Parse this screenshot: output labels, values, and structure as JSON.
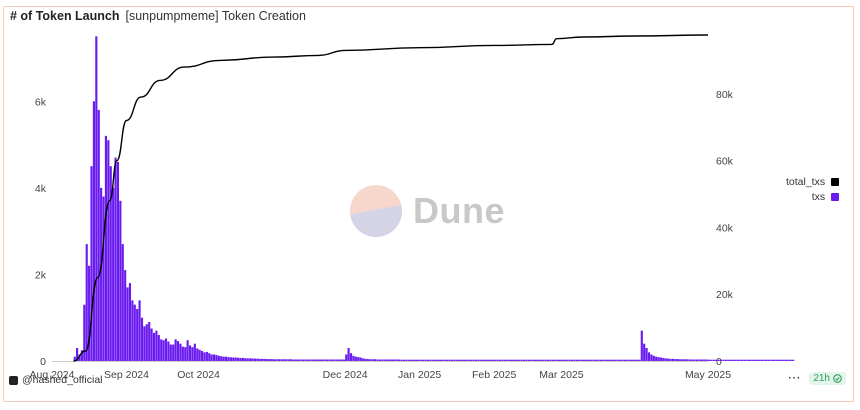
{
  "header": {
    "title": "# of Token Launch",
    "subtitle": "[sunpumpmeme] Token Creation"
  },
  "footer": {
    "author": "@hashed_official",
    "menu": "···",
    "freshness": "21h"
  },
  "watermark": "Dune",
  "colors": {
    "bar": "#6a1bf0",
    "line": "#000000",
    "grid": "#eeeeee",
    "card_border": "#f3c9b6"
  },
  "chart_data": {
    "type": "bar+line",
    "x_tick_labels": [
      "Aug 2024",
      "Sep 2024",
      "Oct 2024",
      "Dec 2024",
      "Jan 2025",
      "Feb 2025",
      "Mar 2025",
      "May 2025"
    ],
    "x_tick_dates": [
      "2024-08-01",
      "2024-09-01",
      "2024-10-01",
      "2024-12-01",
      "2025-01-01",
      "2025-02-01",
      "2025-03-01",
      "2025-05-01"
    ],
    "left_axis": {
      "ticks": [
        0,
        2000,
        4000,
        6000
      ],
      "tick_labels": [
        "0",
        "2k",
        "4k",
        "6k"
      ],
      "range": [
        0,
        7600
      ]
    },
    "right_axis": {
      "ticks": [
        0,
        20000,
        40000,
        60000,
        80000
      ],
      "tick_labels": [
        "0",
        "20k",
        "40k",
        "60k",
        "80k"
      ],
      "range": [
        0,
        98500
      ]
    },
    "series": [
      {
        "name": "txs",
        "kind": "bar",
        "axis": "left",
        "color": "#6a1bf0",
        "start_date": "2024-08-10",
        "values": [
          100,
          300,
          150,
          250,
          1300,
          2700,
          2200,
          4500,
          6000,
          7500,
          5800,
          4000,
          3800,
          5200,
          5100,
          4500,
          4000,
          4700,
          4600,
          3700,
          2700,
          2100,
          1700,
          1800,
          1400,
          1300,
          1200,
          1400,
          1000,
          800,
          850,
          900,
          750,
          650,
          700,
          600,
          500,
          480,
          520,
          450,
          380,
          380,
          500,
          460,
          400,
          330,
          320,
          480,
          360,
          320,
          400,
          290,
          260,
          230,
          200,
          210,
          180,
          150,
          150,
          140,
          120,
          110,
          100,
          100,
          90,
          85,
          80,
          80,
          75,
          70,
          70,
          65,
          60,
          60,
          60,
          55,
          55,
          50,
          50,
          50,
          45,
          45,
          45,
          40,
          40,
          40,
          40,
          40,
          40,
          40,
          40,
          35,
          35,
          35,
          35,
          35,
          35,
          35,
          35,
          35,
          35,
          35,
          35,
          35,
          35,
          35,
          35,
          35,
          35,
          35,
          35,
          35,
          35,
          150,
          300,
          180,
          120,
          100,
          90,
          80,
          60,
          50,
          45,
          40,
          40,
          40,
          35,
          35,
          35,
          35,
          35,
          35,
          35,
          35,
          35,
          35,
          30,
          30,
          30,
          30,
          30,
          30,
          30,
          30,
          30,
          30,
          30,
          30,
          30,
          30,
          30,
          30,
          30,
          30,
          30,
          30,
          30,
          30,
          30,
          30,
          30,
          30,
          30,
          30,
          30,
          30,
          30,
          30,
          30,
          30,
          30,
          30,
          30,
          30,
          30,
          30,
          30,
          30,
          30,
          30,
          30,
          30,
          30,
          30,
          30,
          30,
          30,
          30,
          30,
          30,
          30,
          30,
          30,
          30,
          30,
          30,
          30,
          30,
          30,
          30,
          30,
          30,
          30,
          30,
          30,
          30,
          30,
          30,
          30,
          30,
          30,
          30,
          30,
          30,
          30,
          30,
          30,
          30,
          30,
          30,
          30,
          30,
          30,
          30,
          30,
          30,
          30,
          30,
          30,
          30,
          30,
          30,
          30,
          30,
          30,
          30,
          700,
          400,
          300,
          200,
          150,
          120,
          100,
          90,
          80,
          70,
          60,
          55,
          50,
          50,
          45,
          45,
          40,
          40,
          40,
          40,
          35,
          35,
          35,
          35,
          35,
          35,
          35,
          35,
          30,
          30,
          30,
          30,
          30,
          30,
          30,
          30,
          30,
          30,
          30,
          30,
          30,
          30,
          30,
          30,
          30,
          30,
          30,
          30,
          30,
          30,
          30,
          30,
          30,
          30,
          30,
          30,
          30,
          30,
          30,
          30,
          30,
          30,
          30,
          30
        ]
      },
      {
        "name": "total_txs",
        "kind": "line",
        "axis": "right",
        "color": "#000000",
        "points": [
          [
            "2024-08-10",
            0
          ],
          [
            "2024-08-15",
            3000
          ],
          [
            "2024-08-20",
            25000
          ],
          [
            "2024-08-25",
            48000
          ],
          [
            "2024-08-28",
            60000
          ],
          [
            "2024-09-01",
            72000
          ],
          [
            "2024-09-07",
            79000
          ],
          [
            "2024-09-15",
            84000
          ],
          [
            "2024-09-25",
            88000
          ],
          [
            "2024-10-10",
            90000
          ],
          [
            "2024-11-01",
            91000
          ],
          [
            "2024-11-20",
            91500
          ],
          [
            "2024-12-01",
            93000
          ],
          [
            "2025-01-01",
            93800
          ],
          [
            "2025-02-01",
            94500
          ],
          [
            "2025-02-25",
            94800
          ],
          [
            "2025-02-27",
            96500
          ],
          [
            "2025-03-10",
            97000
          ],
          [
            "2025-04-01",
            97300
          ],
          [
            "2025-05-01",
            97600
          ]
        ]
      }
    ],
    "legend": {
      "placement": "right",
      "entries": [
        "total_txs",
        "txs"
      ]
    }
  }
}
